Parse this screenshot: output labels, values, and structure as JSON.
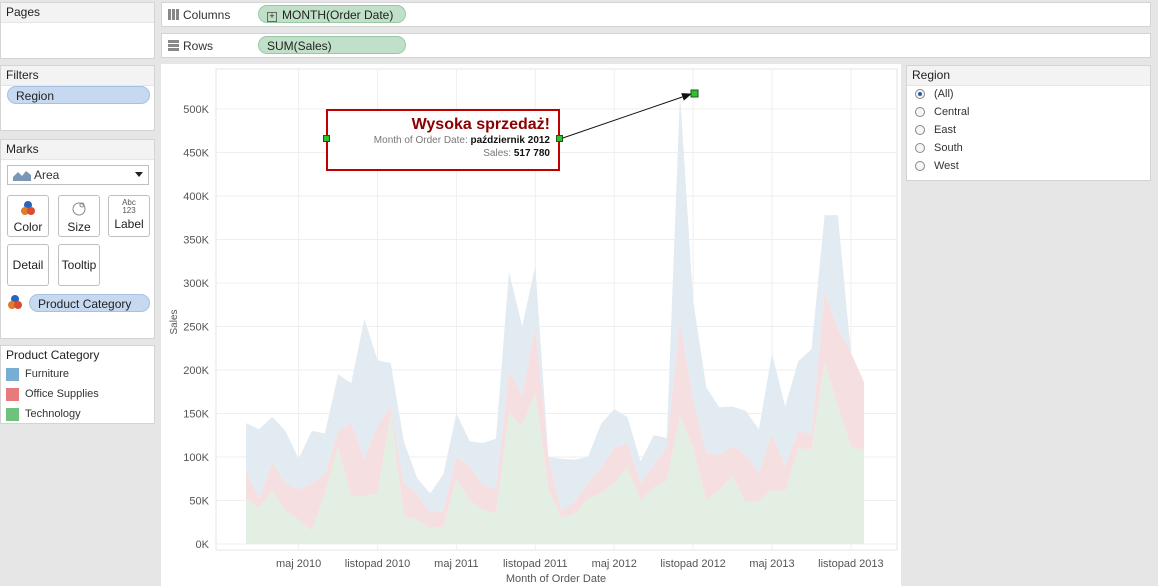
{
  "pages": {
    "title": "Pages"
  },
  "columns": {
    "label": "Columns",
    "pill": "MONTH(Order Date)"
  },
  "rows": {
    "label": "Rows",
    "pill": "SUM(Sales)"
  },
  "filters": {
    "title": "Filters",
    "pill": "Region"
  },
  "marks": {
    "title": "Marks",
    "type": "Area",
    "buttons": {
      "color": "Color",
      "size": "Size",
      "label": "Label",
      "detail": "Detail",
      "tooltip": "Tooltip"
    },
    "label_icon_top": "Abc",
    "label_icon_bottom": "123",
    "color_pill": "Product Category"
  },
  "legend": {
    "title": "Product Category",
    "items": [
      {
        "name": "Furniture",
        "color": "#79aed4"
      },
      {
        "name": "Office Supplies",
        "color": "#e8797d"
      },
      {
        "name": "Technology",
        "color": "#6fc27d"
      }
    ]
  },
  "region_filter": {
    "title": "Region",
    "options": [
      "(All)",
      "Central",
      "East",
      "South",
      "West"
    ],
    "selected": "(All)"
  },
  "annotation": {
    "title": "Wysoka sprzedaż!",
    "line1_label": "Month of Order Date:",
    "line1_value": "październik 2012",
    "line2_label": "Sales:",
    "line2_value": "517 780"
  },
  "chart_data": {
    "type": "area",
    "stacked": true,
    "xlabel": "Month of Order Date",
    "ylabel": "Sales",
    "ylim": [
      0,
      540000
    ],
    "yticks": [
      0,
      50000,
      100000,
      150000,
      200000,
      250000,
      300000,
      350000,
      400000,
      450000,
      500000
    ],
    "ytick_labels": [
      "0K",
      "50K",
      "100K",
      "150K",
      "200K",
      "250K",
      "300K",
      "350K",
      "400K",
      "450K",
      "500K"
    ],
    "x_tick_labels": [
      "maj 2010",
      "listopad 2010",
      "maj 2011",
      "listopad 2011",
      "maj 2012",
      "listopad 2012",
      "maj 2013",
      "listopad 2013"
    ],
    "x_tick_month_index": [
      4,
      10,
      16,
      22,
      28,
      34,
      40,
      46
    ],
    "months_count": 48,
    "series": [
      {
        "name": "Technology",
        "color": "#6fc27d",
        "values": [
          52000,
          42000,
          62000,
          38000,
          28000,
          15000,
          58000,
          112000,
          55000,
          55000,
          58000,
          150000,
          32000,
          28000,
          18000,
          20000,
          75000,
          50000,
          40000,
          35000,
          150000,
          135000,
          175000,
          62000,
          30000,
          35000,
          52000,
          58000,
          70000,
          88000,
          50000,
          65000,
          72000,
          148000,
          110000,
          50000,
          62000,
          78000,
          48000,
          50000,
          62000,
          60000,
          110000,
          108000,
          210000,
          158000,
          112000,
          108000
        ]
      },
      {
        "name": "Office Supplies",
        "color": "#e8797d",
        "values": [
          32000,
          10000,
          32000,
          32000,
          35000,
          55000,
          22000,
          18000,
          85000,
          42000,
          78000,
          8000,
          38000,
          30000,
          18000,
          18000,
          25000,
          40000,
          28000,
          28000,
          50000,
          35000,
          75000,
          38000,
          8000,
          14000,
          18000,
          30000,
          40000,
          28000,
          20000,
          25000,
          40000,
          110000,
          55000,
          55000,
          40000,
          35000,
          55000,
          32000,
          65000,
          30000,
          20000,
          18000,
          80000,
          90000,
          108000,
          78000
        ]
      },
      {
        "name": "Furniture",
        "color": "#79aed4",
        "values": [
          55000,
          80000,
          52000,
          60000,
          35000,
          60000,
          47000,
          65000,
          45000,
          162000,
          75000,
          50000,
          48000,
          18000,
          22000,
          42000,
          50000,
          28000,
          48000,
          58000,
          113000,
          80000,
          70000,
          0,
          60000,
          48000,
          30000,
          50000,
          45000,
          30000,
          25000,
          35000,
          10000,
          259780,
          115000,
          75000,
          55000,
          45000,
          50000,
          50000,
          92000,
          68000,
          80000,
          98000,
          88000,
          130000,
          0,
          0
        ]
      }
    ]
  }
}
